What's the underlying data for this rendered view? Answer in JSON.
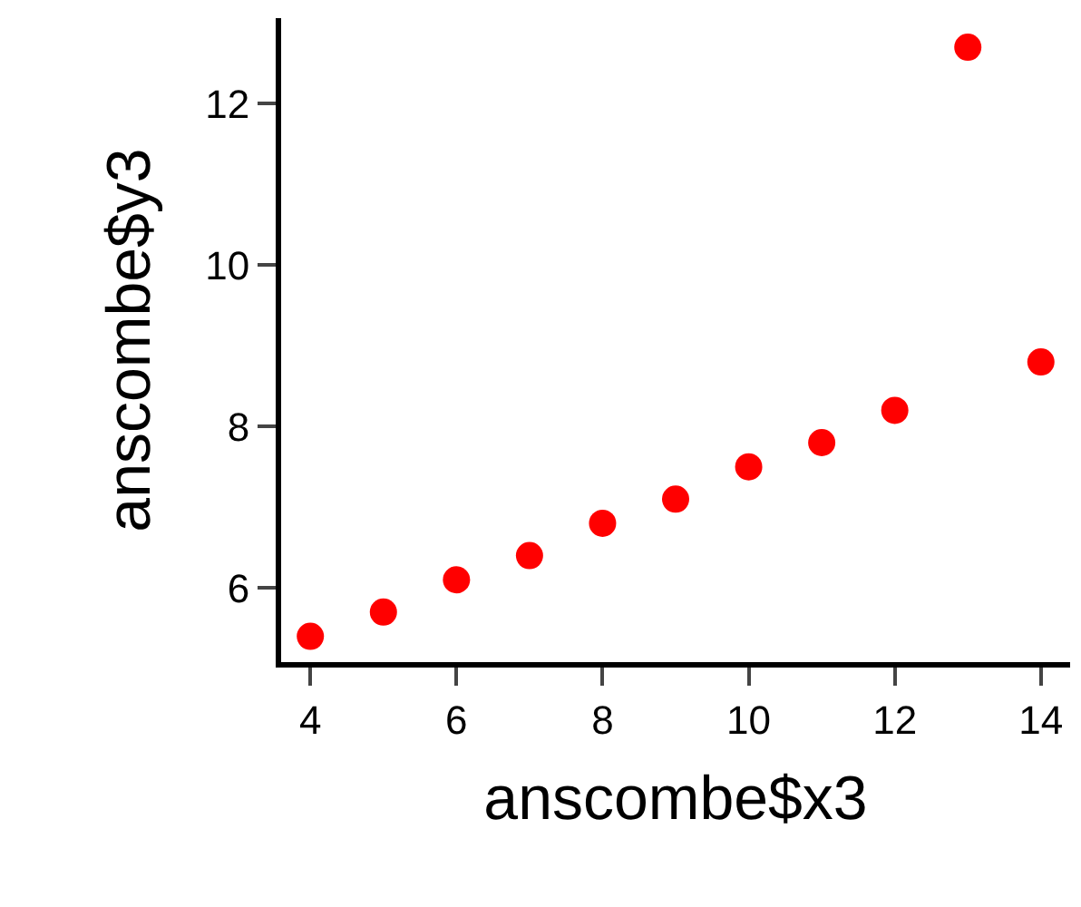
{
  "chart_data": {
    "type": "scatter",
    "xlabel": "anscombe$x3",
    "ylabel": "anscombe$y3",
    "x": [
      4,
      5,
      6,
      7,
      8,
      9,
      10,
      11,
      12,
      13,
      14
    ],
    "series": [
      {
        "color": "#ff0000",
        "values": [
          5.4,
          5.7,
          6.1,
          6.4,
          6.8,
          7.1,
          7.5,
          7.8,
          8.2,
          12.7,
          8.8
        ]
      }
    ],
    "xlim": [
      3.6,
      14.4
    ],
    "ylim": [
      5.08,
      13.06
    ],
    "xticks": [
      4,
      6,
      8,
      10,
      12,
      14
    ],
    "yticks": [
      6,
      8,
      10,
      12
    ],
    "marker": "circle",
    "legend": false
  }
}
